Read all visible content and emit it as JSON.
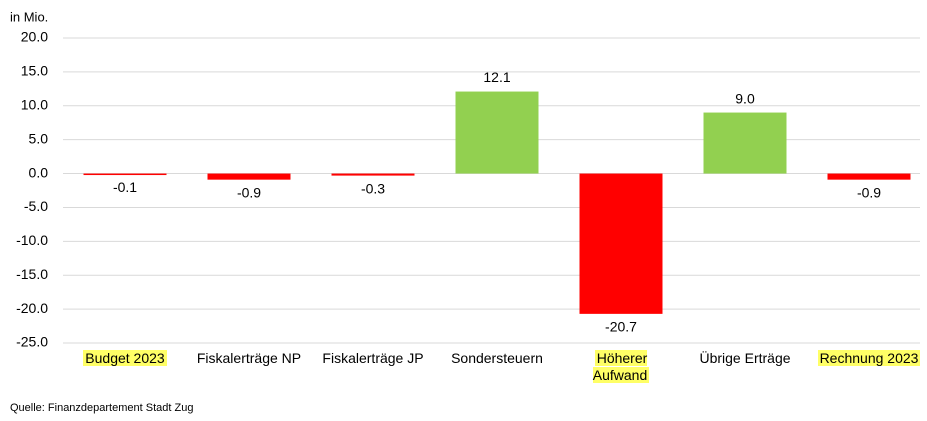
{
  "chart_data": {
    "type": "bar",
    "y_axis_label": "in Mio.",
    "categories": [
      "Budget 2023",
      "Fiskalerträge NP",
      "Fiskalerträge JP",
      "Sondersteuern",
      "Höherer\nAufwand",
      "Übrige Erträge",
      "Rechnung 2023"
    ],
    "values": [
      -0.1,
      -0.9,
      -0.3,
      12.1,
      -20.7,
      9.0,
      -0.9
    ],
    "value_labels": [
      "-0.1",
      "-0.9",
      "-0.3",
      "12.1",
      "-20.7",
      "9.0",
      "-0.9"
    ],
    "colors": [
      "#ff0000",
      "#ff0000",
      "#ff0000",
      "#92d050",
      "#ff0000",
      "#92d050",
      "#ff0000"
    ],
    "highlighted": [
      true,
      false,
      false,
      false,
      true,
      false,
      true
    ],
    "highlight_color": "#ffff66",
    "ylim": [
      -25,
      20
    ],
    "yticks": [
      {
        "value": 20,
        "label": "20.0"
      },
      {
        "value": 15,
        "label": "15.0"
      },
      {
        "value": 10,
        "label": "10.0"
      },
      {
        "value": 5,
        "label": "5.0"
      },
      {
        "value": 0,
        "label": "0.0"
      },
      {
        "value": -5,
        "label": "-5.0"
      },
      {
        "value": -10,
        "label": "-10.0"
      },
      {
        "value": -15,
        "label": "-15.0"
      },
      {
        "value": -20,
        "label": "-20.0"
      },
      {
        "value": -25,
        "label": "-25.0"
      }
    ],
    "grid": true,
    "source": "Quelle: Finanzdepartement Stadt Zug"
  }
}
